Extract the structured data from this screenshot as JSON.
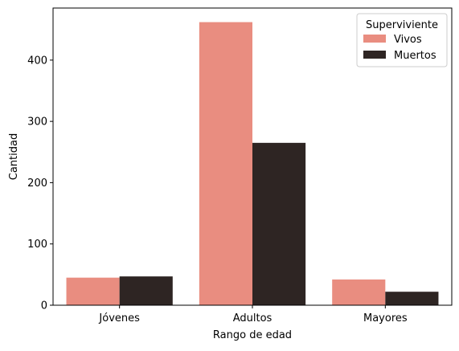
{
  "chart_data": {
    "type": "bar",
    "title": "",
    "xlabel": "Rango de edad",
    "ylabel": "Cantidad",
    "categories": [
      "Jóvenes",
      "Adultos",
      "Mayores"
    ],
    "series": [
      {
        "name": "Vivos",
        "values": [
          45,
          462,
          42
        ],
        "color": "#e98d80"
      },
      {
        "name": "Muertos",
        "values": [
          47,
          265,
          22
        ],
        "color": "#2e2523"
      }
    ],
    "ylim": [
      0,
      485
    ],
    "yticks": [
      0,
      100,
      200,
      300,
      400
    ],
    "grid": false,
    "legend": {
      "title": "Superviviente",
      "placement": "top-right"
    }
  }
}
